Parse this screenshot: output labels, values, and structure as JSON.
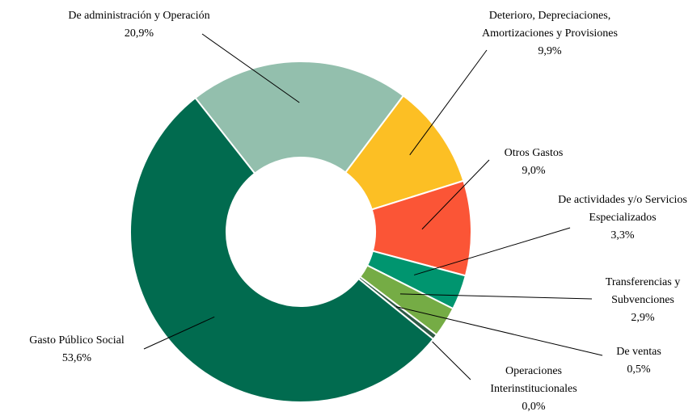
{
  "chart_data": {
    "type": "pie",
    "donut": true,
    "categories": [
      "De administración y Operación",
      "Deterioro, Depreciaciones, Amortizaciones y Provisiones",
      "Otros Gastos",
      "De actividades y/o Servicios Especializados",
      "Transferencias y Subvenciones",
      "De ventas",
      "Operaciones Interinstitucionales",
      "Gasto Público Social"
    ],
    "values": [
      20.9,
      9.9,
      9.0,
      3.3,
      2.9,
      0.5,
      0.0,
      53.6
    ],
    "value_labels": [
      "20,9%",
      "9,9%",
      "9,0%",
      "3,3%",
      "2,9%",
      "0,5%",
      "0,0%",
      "53,6%"
    ],
    "colors": [
      "#93bfad",
      "#fcbf24",
      "#fb5536",
      "#00956f",
      "#75ac45",
      "#2f5b46",
      "#1d3d30",
      "#016b4f"
    ]
  }
}
